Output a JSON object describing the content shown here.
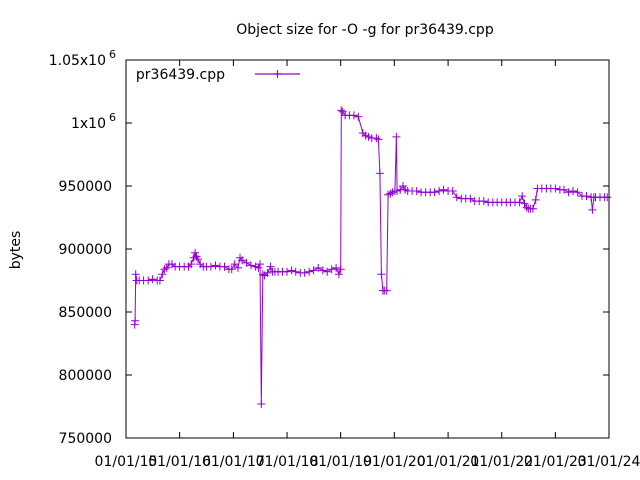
{
  "chart_data": {
    "type": "line",
    "title": "Object size for -O -g for pr36439.cpp",
    "xlabel": "",
    "ylabel": "bytes",
    "xlim": [
      "2015-01-01",
      "2024-01-01"
    ],
    "ylim": [
      750000,
      1050000
    ],
    "x_ticks": [
      "01/01/15",
      "01/01/16",
      "01/01/17",
      "01/01/18",
      "01/01/19",
      "01/01/20",
      "01/01/21",
      "01/01/22",
      "01/01/23",
      "01/01/24"
    ],
    "y_ticks": [
      {
        "value": 750000,
        "base": "750000",
        "sup": ""
      },
      {
        "value": 800000,
        "base": "800000",
        "sup": ""
      },
      {
        "value": 850000,
        "base": "850000",
        "sup": ""
      },
      {
        "value": 900000,
        "base": "900000",
        "sup": ""
      },
      {
        "value": 950000,
        "base": "950000",
        "sup": ""
      },
      {
        "value": 1000000,
        "base": "1x10",
        "sup": "6"
      },
      {
        "value": 1050000,
        "base": "1.05x10",
        "sup": "6"
      }
    ],
    "grid": false,
    "legend_position": "top-left",
    "color": "#9400d3",
    "series": [
      {
        "name": "pr36439.cpp",
        "points": [
          [
            "2015-03-01",
            840000
          ],
          [
            "2015-03-04",
            843000
          ],
          [
            "2015-03-08",
            880000
          ],
          [
            "2015-03-15",
            875000
          ],
          [
            "2015-04-01",
            875000
          ],
          [
            "2015-05-01",
            875000
          ],
          [
            "2015-06-01",
            875000
          ],
          [
            "2015-07-01",
            876000
          ],
          [
            "2015-08-01",
            875000
          ],
          [
            "2015-08-20",
            875000
          ],
          [
            "2015-09-05",
            880000
          ],
          [
            "2015-09-20",
            884000
          ],
          [
            "2015-10-05",
            885000
          ],
          [
            "2015-10-20",
            888000
          ],
          [
            "2015-11-10",
            888000
          ],
          [
            "2015-12-01",
            886000
          ],
          [
            "2016-01-01",
            886000
          ],
          [
            "2016-02-01",
            886000
          ],
          [
            "2016-03-01",
            886000
          ],
          [
            "2016-03-20",
            888000
          ],
          [
            "2016-04-05",
            893000
          ],
          [
            "2016-04-15",
            897000
          ],
          [
            "2016-04-25",
            894000
          ],
          [
            "2016-05-05",
            892000
          ],
          [
            "2016-05-20",
            888000
          ],
          [
            "2016-06-10",
            886000
          ],
          [
            "2016-07-01",
            886000
          ],
          [
            "2016-08-01",
            886000
          ],
          [
            "2016-09-01",
            887000
          ],
          [
            "2016-10-01",
            886000
          ],
          [
            "2016-11-01",
            886000
          ],
          [
            "2016-12-01",
            884000
          ],
          [
            "2016-12-20",
            884000
          ],
          [
            "2017-01-10",
            888000
          ],
          [
            "2017-02-01",
            885000
          ],
          [
            "2017-02-15",
            893000
          ],
          [
            "2017-03-01",
            891000
          ],
          [
            "2017-04-01",
            889000
          ],
          [
            "2017-05-01",
            887000
          ],
          [
            "2017-06-01",
            886000
          ],
          [
            "2017-06-20",
            885000
          ],
          [
            "2017-07-01",
            888000
          ],
          [
            "2017-07-10",
            777000
          ],
          [
            "2017-07-20",
            880000
          ],
          [
            "2017-08-01",
            879000
          ],
          [
            "2017-08-20",
            881000
          ],
          [
            "2017-09-10",
            886000
          ],
          [
            "2017-09-25",
            882000
          ],
          [
            "2017-10-10",
            882000
          ],
          [
            "2017-11-01",
            882000
          ],
          [
            "2017-12-01",
            882000
          ],
          [
            "2018-01-01",
            882000
          ],
          [
            "2018-02-01",
            883000
          ],
          [
            "2018-03-01",
            882000
          ],
          [
            "2018-04-01",
            881000
          ],
          [
            "2018-05-01",
            881000
          ],
          [
            "2018-06-01",
            882000
          ],
          [
            "2018-07-01",
            883000
          ],
          [
            "2018-08-01",
            885000
          ],
          [
            "2018-09-01",
            883000
          ],
          [
            "2018-10-01",
            882000
          ],
          [
            "2018-11-01",
            884000
          ],
          [
            "2018-12-01",
            885000
          ],
          [
            "2018-12-20",
            880000
          ],
          [
            "2019-01-01",
            884000
          ],
          [
            "2019-01-05",
            1010000
          ],
          [
            "2019-01-15",
            1009000
          ],
          [
            "2019-02-01",
            1006000
          ],
          [
            "2019-03-01",
            1006000
          ],
          [
            "2019-04-01",
            1006000
          ],
          [
            "2019-05-01",
            1005000
          ],
          [
            "2019-06-01",
            992000
          ],
          [
            "2019-06-20",
            990000
          ],
          [
            "2019-07-10",
            989000
          ],
          [
            "2019-08-01",
            988000
          ],
          [
            "2019-09-01",
            988000
          ],
          [
            "2019-09-15",
            987000
          ],
          [
            "2019-09-25",
            960000
          ],
          [
            "2019-10-05",
            880000
          ],
          [
            "2019-10-15",
            867000
          ],
          [
            "2019-10-25",
            867000
          ],
          [
            "2019-11-10",
            867000
          ],
          [
            "2019-11-20",
            943000
          ],
          [
            "2019-12-05",
            944000
          ],
          [
            "2019-12-20",
            945000
          ],
          [
            "2020-01-05",
            946000
          ],
          [
            "2020-01-15",
            989000
          ],
          [
            "2020-01-20",
            946000
          ],
          [
            "2020-02-10",
            947000
          ],
          [
            "2020-03-01",
            950000
          ],
          [
            "2020-03-15",
            947000
          ],
          [
            "2020-04-01",
            946000
          ],
          [
            "2020-05-01",
            946000
          ],
          [
            "2020-06-01",
            946000
          ],
          [
            "2020-07-01",
            945000
          ],
          [
            "2020-08-01",
            945000
          ],
          [
            "2020-09-01",
            945000
          ],
          [
            "2020-10-01",
            945000
          ],
          [
            "2020-11-01",
            946000
          ],
          [
            "2020-12-01",
            947000
          ],
          [
            "2021-01-01",
            946000
          ],
          [
            "2021-02-01",
            946000
          ],
          [
            "2021-03-01",
            941000
          ],
          [
            "2021-04-01",
            940000
          ],
          [
            "2021-05-01",
            940000
          ],
          [
            "2021-06-01",
            940000
          ],
          [
            "2021-07-01",
            938000
          ],
          [
            "2021-08-01",
            938000
          ],
          [
            "2021-09-01",
            938000
          ],
          [
            "2021-10-01",
            937000
          ],
          [
            "2021-11-01",
            937000
          ],
          [
            "2021-12-01",
            937000
          ],
          [
            "2022-01-01",
            937000
          ],
          [
            "2022-02-01",
            937000
          ],
          [
            "2022-03-01",
            937000
          ],
          [
            "2022-04-01",
            937000
          ],
          [
            "2022-05-01",
            937000
          ],
          [
            "2022-05-20",
            942000
          ],
          [
            "2022-06-05",
            936000
          ],
          [
            "2022-06-20",
            933000
          ],
          [
            "2022-07-01",
            932000
          ],
          [
            "2022-07-15",
            932000
          ],
          [
            "2022-08-01",
            932000
          ],
          [
            "2022-08-20",
            939000
          ],
          [
            "2022-09-01",
            948000
          ],
          [
            "2022-10-01",
            948000
          ],
          [
            "2022-11-01",
            948000
          ],
          [
            "2022-12-01",
            948000
          ],
          [
            "2023-01-01",
            948000
          ],
          [
            "2023-02-01",
            947000
          ],
          [
            "2023-03-01",
            947000
          ],
          [
            "2023-04-01",
            945000
          ],
          [
            "2023-05-01",
            946000
          ],
          [
            "2023-06-01",
            945000
          ],
          [
            "2023-07-01",
            942000
          ],
          [
            "2023-08-01",
            942000
          ],
          [
            "2023-09-01",
            941000
          ],
          [
            "2023-09-10",
            931000
          ],
          [
            "2023-09-20",
            941000
          ],
          [
            "2023-10-01",
            941000
          ],
          [
            "2023-11-01",
            941000
          ],
          [
            "2023-12-01",
            941000
          ],
          [
            "2023-12-20",
            941000
          ]
        ]
      }
    ]
  }
}
